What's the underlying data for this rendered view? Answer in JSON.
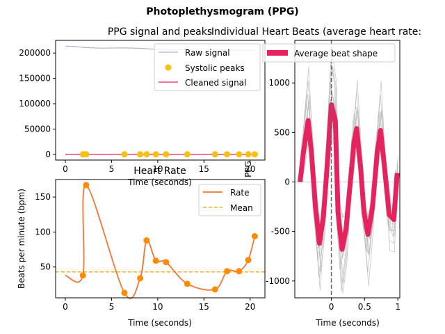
{
  "figure": {
    "suptitle": "Photoplethysmogram (PPG)",
    "colors": {
      "raw": "#a8b8cc",
      "cleaned": "#e5245f",
      "peaks": "#fbbf0f",
      "rate": "#f27530",
      "rate_points": "#ff8c00",
      "mean": "#f2b21a",
      "beat_avg": "#e5245f",
      "beat_trace": "#b4b4b4"
    }
  },
  "chart_data": [
    {
      "type": "line",
      "title": "PPG signal and peaks",
      "xlabel": "Time (seconds)",
      "ylabel": "",
      "xlim": [
        -1.05,
        21.6
      ],
      "ylim": [
        -11000,
        225000
      ],
      "xticks": [
        0,
        5,
        10,
        15,
        20
      ],
      "yticks": [
        0,
        50000,
        100000,
        150000,
        200000
      ],
      "legend": [
        "Raw signal",
        "Systolic peaks",
        "Cleaned signal"
      ],
      "legend_placement": "top-right",
      "series": [
        {
          "name": "Raw signal",
          "x": [
            0,
            0.5,
            1,
            1.5,
            2,
            2.5,
            3,
            3.5,
            4,
            5,
            6,
            7,
            8,
            9,
            10,
            11,
            12,
            13,
            14,
            15,
            16,
            17,
            18,
            19,
            20,
            20.5
          ],
          "y": [
            213500,
            213300,
            212800,
            212000,
            211200,
            210600,
            210200,
            209800,
            209700,
            209900,
            210100,
            209900,
            209300,
            208300,
            207200,
            206500,
            206300,
            206800,
            207700,
            208100,
            207600,
            206600,
            205800,
            205500,
            205600,
            205400
          ]
        },
        {
          "name": "Systolic peaks",
          "x": [
            1.9,
            2.25,
            6.4,
            8.1,
            8.8,
            9.8,
            10.9,
            13.2,
            16.2,
            17.5,
            18.8,
            19.8,
            20.5
          ],
          "y": [
            300,
            300,
            300,
            300,
            300,
            300,
            300,
            300,
            300,
            300,
            300,
            300,
            300
          ]
        },
        {
          "name": "Cleaned signal",
          "x": [
            0,
            20.5
          ],
          "y": [
            0,
            0
          ]
        }
      ]
    },
    {
      "type": "line",
      "title": "Heart Rate",
      "xlabel": "Time (seconds)",
      "ylabel": "Beats per minute (bpm)",
      "xlim": [
        -1.05,
        21.6
      ],
      "ylim": [
        6,
        175
      ],
      "xticks": [
        0,
        5,
        10,
        15,
        20
      ],
      "yticks": [
        50,
        100,
        150
      ],
      "legend": [
        "Rate",
        "Mean"
      ],
      "legend_placement": "top-right",
      "mean": 43,
      "series": [
        {
          "name": "Rate",
          "x": [
            1.9,
            2.25,
            6.4,
            8.1,
            8.8,
            9.8,
            10.9,
            13.2,
            16.2,
            17.5,
            18.8,
            19.8,
            20.5
          ],
          "y": [
            38,
            167,
            13,
            34,
            88,
            59,
            57,
            26,
            18,
            44,
            44,
            60,
            94
          ],
          "pre_value": 38
        }
      ]
    },
    {
      "type": "line",
      "title": "Individual Heart Beats (average heart rate: ",
      "xlabel": "Time (seconds)",
      "ylabel": "PPG",
      "xlim": [
        -0.55,
        1.03
      ],
      "ylim": [
        -1170,
        1430
      ],
      "xticks": [
        0,
        0.5,
        1
      ],
      "xtick_labels": [
        "0",
        "0.5",
        "1"
      ],
      "yticks": [
        -1000,
        -500,
        0,
        500,
        1000
      ],
      "legend": [
        "Average beat shape"
      ],
      "legend_placement": "top",
      "series": [
        {
          "name": "Average beat shape",
          "x": [
            -0.47,
            -0.42,
            -0.35,
            -0.3,
            -0.24,
            -0.18,
            -0.12,
            -0.07,
            0.0,
            0.06,
            0.1,
            0.16,
            0.22,
            0.28,
            0.34,
            0.38,
            0.44,
            0.49,
            0.55,
            0.62,
            0.69,
            0.74,
            0.8,
            0.87,
            0.94,
            0.99
          ],
          "y": [
            0,
            300,
            620,
            300,
            -250,
            -620,
            -350,
            100,
            780,
            620,
            -300,
            -680,
            -480,
            -40,
            400,
            540,
            150,
            -300,
            -530,
            -250,
            300,
            520,
            150,
            -330,
            -380,
            90
          ]
        }
      ]
    }
  ]
}
